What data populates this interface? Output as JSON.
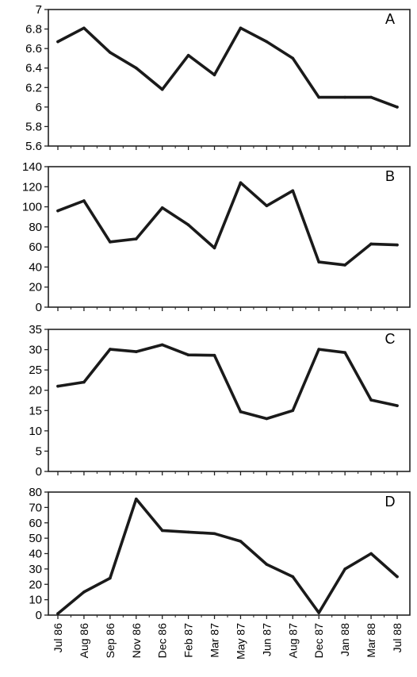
{
  "chart_data": [
    {
      "type": "line",
      "panel_label": "A",
      "x": [
        "Jul 86",
        "Aug 86",
        "Sep 86",
        "Nov 86",
        "Dec 86",
        "Feb 87",
        "Mar 87",
        "May 87",
        "Jun 87",
        "Aug 87",
        "Dec 87",
        "Jan 88",
        "Mar 88",
        "Jul 88"
      ],
      "series": [
        {
          "values": [
            6.67,
            6.81,
            6.56,
            6.4,
            6.18,
            6.53,
            6.33,
            6.81,
            6.67,
            6.5,
            6.1,
            6.1,
            6.1,
            6.0
          ]
        }
      ],
      "ylim": [
        5.6,
        7
      ],
      "yticks": [
        "5.6",
        "5.8",
        "6",
        "6.2",
        "6.4",
        "6.6",
        "6.8",
        "7"
      ],
      "color": "#1a1a1a"
    },
    {
      "type": "line",
      "panel_label": "B",
      "x": [
        "Jul 86",
        "Aug 86",
        "Sep 86",
        "Nov 86",
        "Dec 86",
        "Feb 87",
        "Mar 87",
        "May 87",
        "Jun 87",
        "Aug 87",
        "Dec 87",
        "Jan 88",
        "Mar 88",
        "Jul 88"
      ],
      "series": [
        {
          "values": [
            96,
            106,
            65,
            68,
            99,
            82,
            59,
            124,
            101,
            116,
            45,
            42,
            63,
            62
          ]
        }
      ],
      "ylim": [
        0,
        140
      ],
      "yticks": [
        "0",
        "20",
        "40",
        "60",
        "80",
        "100",
        "120",
        "140"
      ],
      "color": "#1a1a1a"
    },
    {
      "type": "line",
      "panel_label": "C",
      "x": [
        "Jul 86",
        "Aug 86",
        "Sep 86",
        "Nov 86",
        "Dec 86",
        "Feb 87",
        "Mar 87",
        "May 87",
        "Jun 87",
        "Aug 87",
        "Dec 87",
        "Jan 88",
        "Mar 88",
        "Jul 88"
      ],
      "series": [
        {
          "values": [
            21,
            22,
            30.1,
            29.5,
            31.2,
            28.7,
            28.6,
            14.7,
            13,
            15,
            30.1,
            29.3,
            17.6,
            16.2
          ]
        }
      ],
      "ylim": [
        0,
        35
      ],
      "yticks": [
        "0",
        "5",
        "10",
        "15",
        "20",
        "25",
        "30",
        "35"
      ],
      "color": "#1a1a1a"
    },
    {
      "type": "line",
      "panel_label": "D",
      "x": [
        "Jul 86",
        "Aug 86",
        "Sep 86",
        "Nov 86",
        "Dec 86",
        "Feb 87",
        "Mar 87",
        "May 87",
        "Jun 87",
        "Aug 87",
        "Dec 87",
        "Jan 88",
        "Mar 88",
        "Jul 88"
      ],
      "series": [
        {
          "values": [
            1,
            15,
            24,
            75.5,
            55,
            54,
            53,
            48,
            33,
            25,
            1.5,
            30,
            40,
            25
          ]
        }
      ],
      "ylim": [
        0,
        80
      ],
      "yticks": [
        "0",
        "10",
        "20",
        "30",
        "40",
        "50",
        "60",
        "70",
        "80"
      ],
      "color": "#1a1a1a"
    }
  ]
}
